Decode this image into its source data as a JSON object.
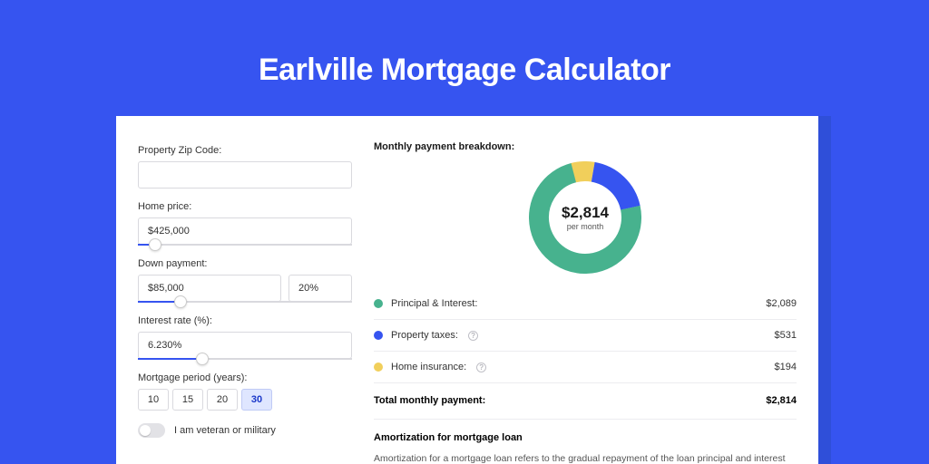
{
  "page": {
    "title": "Earlville Mortgage Calculator",
    "background_color": "#3654f0"
  },
  "form": {
    "zip": {
      "label": "Property Zip Code:",
      "value": ""
    },
    "price": {
      "label": "Home price:",
      "value": "$425,000",
      "slider_pct": 8
    },
    "down": {
      "label": "Down payment:",
      "value": "$85,000",
      "pct": "20%",
      "slider_pct": 20
    },
    "rate": {
      "label": "Interest rate (%):",
      "value": "6.230%",
      "slider_pct": 30
    },
    "period": {
      "label": "Mortgage period (years):",
      "options": [
        "10",
        "15",
        "20",
        "30"
      ],
      "selected": "30"
    },
    "veteran": {
      "label": "I am veteran or military",
      "enabled": false
    }
  },
  "breakdown": {
    "heading": "Monthly payment breakdown:",
    "donut": {
      "center_value": "$2,814",
      "center_sub": "per month"
    },
    "items": [
      {
        "key": "principal",
        "label": "Principal & Interest:",
        "value": "$2,089",
        "color": "#47b28e",
        "info": false,
        "pct": 74.23
      },
      {
        "key": "taxes",
        "label": "Property taxes:",
        "value": "$531",
        "color": "#3654f0",
        "info": true,
        "pct": 18.87
      },
      {
        "key": "insurance",
        "label": "Home insurance:",
        "value": "$194",
        "color": "#f1cf5b",
        "info": true,
        "pct": 6.9
      }
    ],
    "total": {
      "label": "Total monthly payment:",
      "value": "$2,814"
    }
  },
  "amortization": {
    "title": "Amortization for mortgage loan",
    "text": "Amortization for a mortgage loan refers to the gradual repayment of the loan principal and interest over a specified"
  },
  "chart_style": {
    "size": 124,
    "stroke_width": 22,
    "bg": "#ffffff"
  }
}
